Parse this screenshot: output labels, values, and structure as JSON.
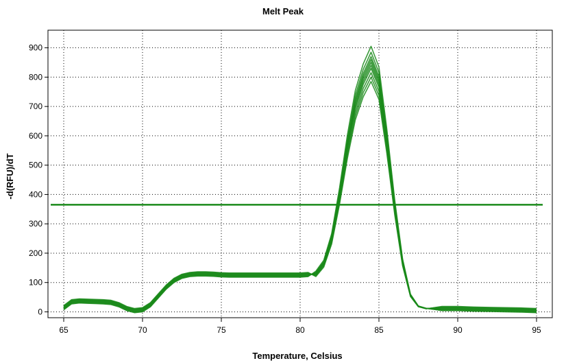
{
  "chart_data": {
    "type": "line",
    "title": "Melt Peak",
    "xlabel": "Temperature, Celsius",
    "ylabel": "-d(RFU)/dT",
    "xlim": [
      64,
      96
    ],
    "ylim": [
      -20,
      960
    ],
    "xticks": [
      65,
      70,
      75,
      80,
      85,
      90,
      95
    ],
    "yticks": [
      0,
      100,
      200,
      300,
      400,
      500,
      600,
      700,
      800,
      900
    ],
    "grid": true,
    "legend": "none",
    "threshold": 365,
    "line_color": "#1a8a1a",
    "series_peak_heights": [
      905,
      885,
      870,
      860,
      850,
      840,
      830,
      815,
      800,
      785
    ],
    "series": [
      {
        "x": [
          65,
          65.5,
          66,
          66.5,
          67,
          67.5,
          68,
          68.5,
          69,
          69.5,
          70,
          70.5,
          71,
          71.5,
          72,
          72.5,
          73,
          73.5,
          74,
          74.5,
          75,
          75.5,
          76,
          76.5,
          77,
          77.5,
          78,
          78.5,
          79,
          79.5,
          80,
          80.5,
          81,
          81.5,
          82,
          82.5,
          83,
          83.5,
          84,
          84.5,
          85,
          85.5,
          86,
          86.5,
          87,
          87.5,
          88,
          89,
          90,
          91,
          92,
          93,
          94,
          95
        ],
        "y": [
          15,
          35,
          38,
          37,
          36,
          35,
          33,
          25,
          12,
          5,
          8,
          25,
          55,
          85,
          108,
          122,
          128,
          130,
          130,
          129,
          127,
          126,
          126,
          126,
          126,
          126,
          126,
          126,
          126,
          126,
          126,
          128,
          138,
          175,
          265,
          420,
          600,
          750,
          840,
          900,
          830,
          620,
          380,
          180,
          60,
          20,
          12,
          12,
          12,
          10,
          9,
          8,
          7,
          5
        ]
      }
    ]
  }
}
